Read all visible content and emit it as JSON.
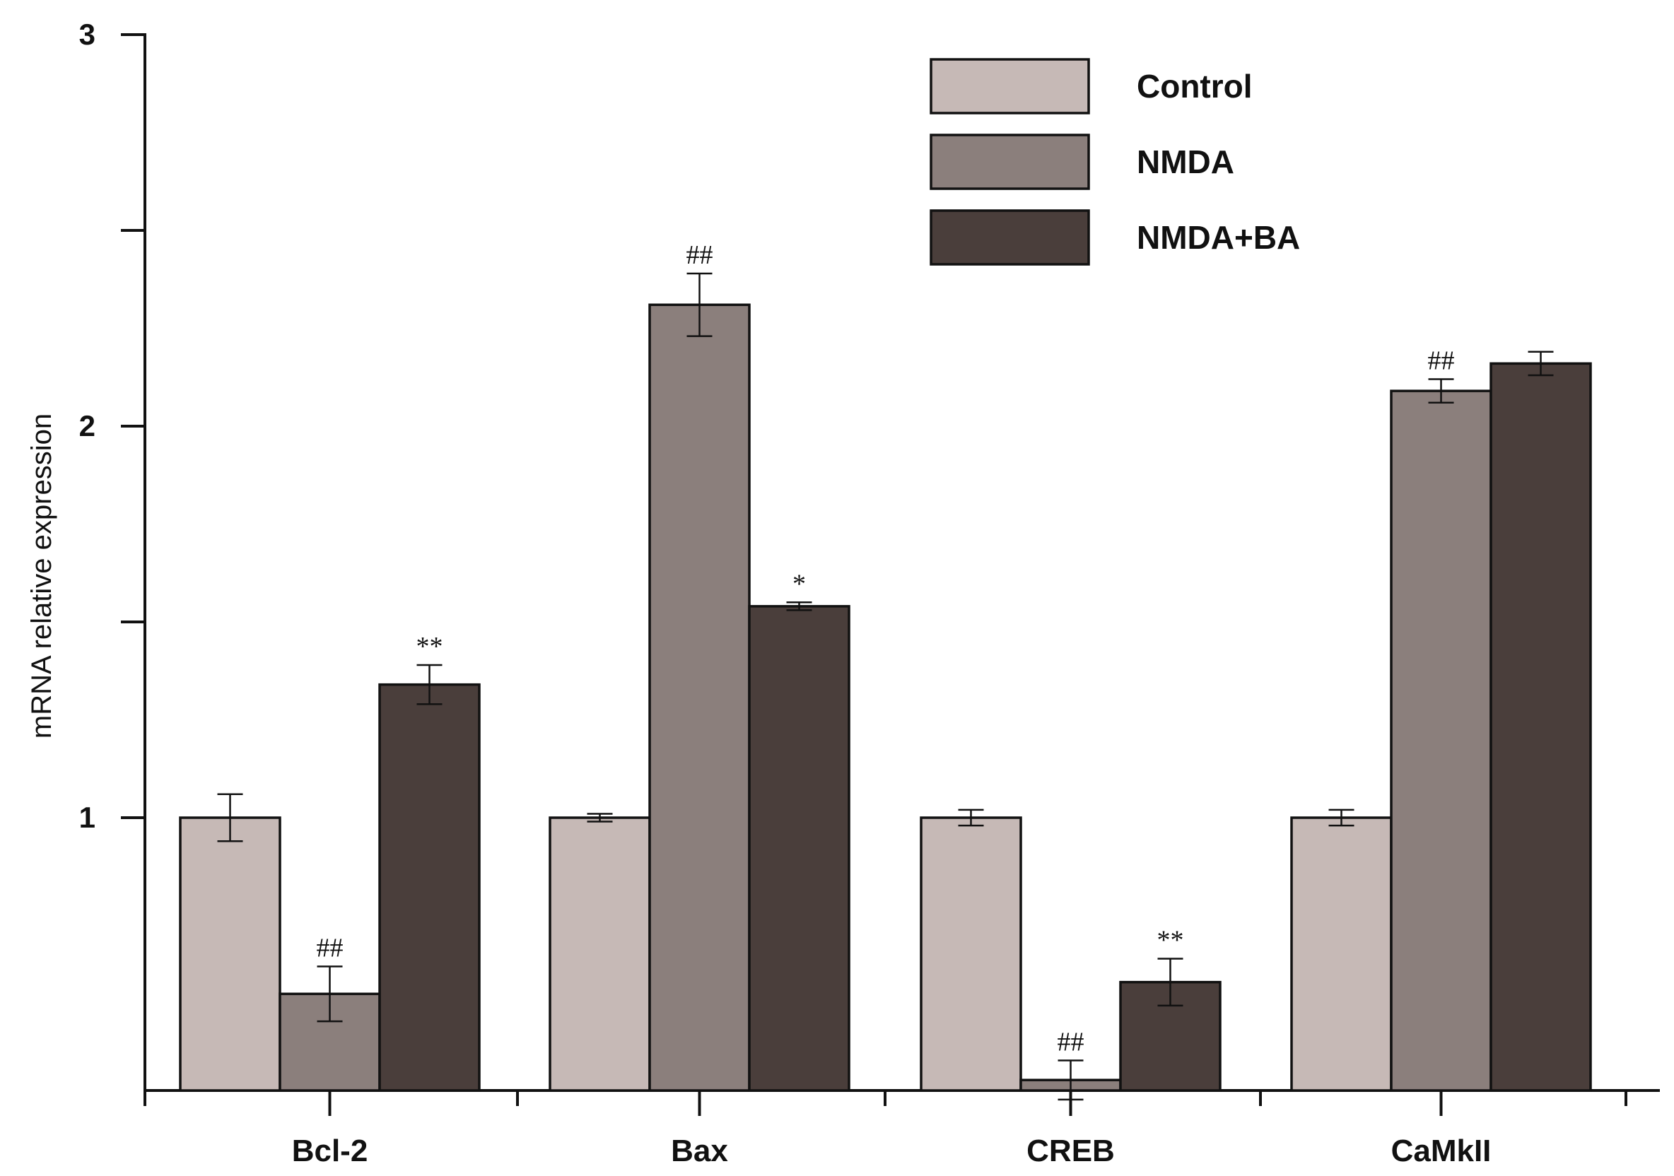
{
  "chart_data": {
    "type": "bar",
    "title": "",
    "xlabel": "",
    "ylabel": "mRNA relative expression",
    "ylim": [
      0.3,
      3
    ],
    "yticks": [
      1,
      1.5,
      2,
      2.5,
      3
    ],
    "ytick_labels": [
      "1",
      "",
      "2",
      "",
      "3"
    ],
    "categories": [
      "Bcl-2",
      "Bax",
      "CREB",
      "CaMkII"
    ],
    "legend_position": "top-right",
    "series": [
      {
        "name": "Control",
        "color": "#c6b9b6",
        "values": [
          1.0,
          1.0,
          1.0,
          1.0
        ],
        "errors": [
          0.06,
          0.01,
          0.02,
          0.02
        ],
        "annotations": [
          "",
          "",
          "",
          ""
        ]
      },
      {
        "name": "NMDA",
        "color": "#8b7f7c",
        "values": [
          0.55,
          2.31,
          0.33,
          2.09
        ],
        "errors": [
          0.07,
          0.08,
          0.05,
          0.03
        ],
        "annotations": [
          "##",
          "##",
          "##",
          "##"
        ]
      },
      {
        "name": "NMDA+BA",
        "color": "#4a3e3b",
        "values": [
          1.34,
          1.54,
          0.58,
          2.16
        ],
        "errors": [
          0.05,
          0.01,
          0.06,
          0.03
        ],
        "annotations": [
          "**",
          "*",
          "**",
          ""
        ]
      }
    ]
  }
}
